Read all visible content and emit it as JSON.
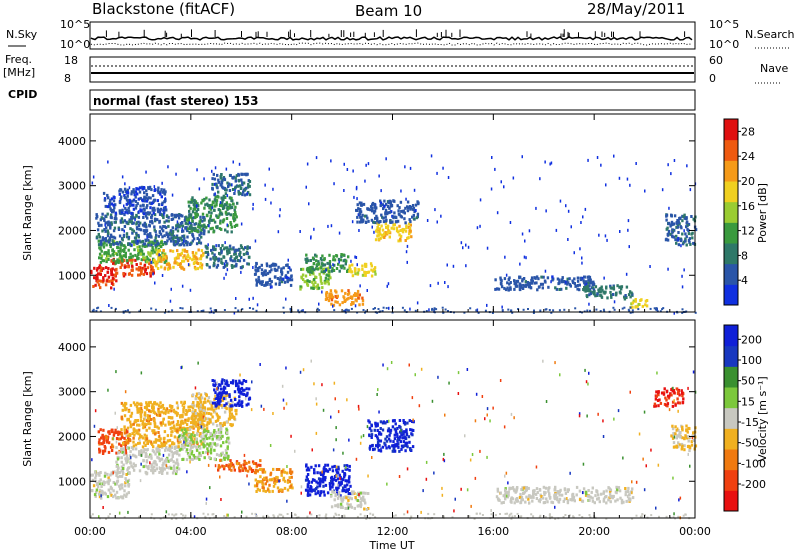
{
  "header": {
    "station": "Blackstone (fitACF)",
    "beam": "Beam 10",
    "date": "28/May/2011"
  },
  "top_panels": {
    "nsky_label": "N.Sky",
    "nsky_ticks": [
      "10^5",
      "10^0"
    ],
    "nsearch_label": "N.Search",
    "nsearch_ticks": [
      "10^5",
      "10^0"
    ],
    "freq_label_line1": "Freq.",
    "freq_label_line2": "[MHz]",
    "freq_ticks": [
      "18",
      "8"
    ],
    "nave_label": "Nave",
    "nave_ticks": [
      "60",
      "0"
    ],
    "cpid_label": "CPID",
    "cpid_text": "normal (fast stereo) 153"
  },
  "colors": {
    "power_scale": [
      "#1030e0",
      "#2a55a8",
      "#2e7868",
      "#3a9a3e",
      "#9acc32",
      "#f0d020",
      "#f59a18",
      "#ef5a10",
      "#e01010"
    ],
    "velocity_scale": [
      "#e81010",
      "#f04010",
      "#f07a10",
      "#f0b020",
      "#c8c8c0",
      "#7cc83c",
      "#3a9030",
      "#1838c0",
      "#1020d8"
    ]
  },
  "chart_data": [
    {
      "type": "heatmap",
      "title": "",
      "xlabel": "Time UT",
      "ylabel": "Slant Range [km]",
      "x_ticks": [
        "00:00",
        "04:00",
        "08:00",
        "12:00",
        "16:00",
        "20:00",
        "00:00"
      ],
      "x_range_hours": [
        0,
        24
      ],
      "y_ticks": [
        "1000",
        "2000",
        "3000",
        "4000"
      ],
      "ylim": [
        180,
        4600
      ],
      "colorbar": {
        "label": "Power [dB]",
        "ticks": [
          "4",
          "8",
          "12",
          "16",
          "20",
          "24",
          "28"
        ],
        "range": [
          0,
          30
        ]
      },
      "regions": [
        {
          "t": [
            0.0,
            1.0
          ],
          "r": [
            750,
            1250
          ],
          "v": 27
        },
        {
          "t": [
            0.8,
            2.5
          ],
          "r": [
            1000,
            1400
          ],
          "v": 26
        },
        {
          "t": [
            0.3,
            3.0
          ],
          "r": [
            1300,
            1800
          ],
          "v": 12
        },
        {
          "t": [
            2.5,
            4.5
          ],
          "r": [
            1150,
            1600
          ],
          "v": 20
        },
        {
          "t": [
            0.2,
            4.5
          ],
          "r": [
            1700,
            2400
          ],
          "v": 6
        },
        {
          "t": [
            0.5,
            3.0
          ],
          "r": [
            2400,
            3000
          ],
          "v": 4
        },
        {
          "t": [
            3.8,
            5.8
          ],
          "r": [
            2000,
            2800
          ],
          "v": 10
        },
        {
          "t": [
            4.5,
            6.3
          ],
          "r": [
            1200,
            1700
          ],
          "v": 7
        },
        {
          "t": [
            4.8,
            6.3
          ],
          "r": [
            2800,
            3300
          ],
          "v": 6
        },
        {
          "t": [
            6.5,
            8.0
          ],
          "r": [
            800,
            1300
          ],
          "v": 5
        },
        {
          "t": [
            8.3,
            9.5
          ],
          "r": [
            700,
            1200
          ],
          "v": 14
        },
        {
          "t": [
            8.5,
            10.2
          ],
          "r": [
            1100,
            1500
          ],
          "v": 10
        },
        {
          "t": [
            9.3,
            10.8
          ],
          "r": [
            350,
            700
          ],
          "v": 22
        },
        {
          "t": [
            10.2,
            11.3
          ],
          "r": [
            1000,
            1300
          ],
          "v": 18
        },
        {
          "t": [
            11.3,
            12.7
          ],
          "r": [
            1800,
            2200
          ],
          "v": 19
        },
        {
          "t": [
            10.5,
            13.0
          ],
          "r": [
            2200,
            2700
          ],
          "v": 5
        },
        {
          "t": [
            16.0,
            20.0
          ],
          "r": [
            700,
            1000
          ],
          "v": 5
        },
        {
          "t": [
            19.5,
            21.5
          ],
          "r": [
            500,
            800
          ],
          "v": 8
        },
        {
          "t": [
            21.3,
            22.1
          ],
          "r": [
            300,
            500
          ],
          "v": 18
        },
        {
          "t": [
            22.8,
            24.0
          ],
          "r": [
            1700,
            2400
          ],
          "v": 6
        }
      ]
    },
    {
      "type": "heatmap",
      "title": "",
      "xlabel": "Time UT",
      "ylabel": "Slant Range [km]",
      "x_ticks": [
        "00:00",
        "04:00",
        "08:00",
        "12:00",
        "16:00",
        "20:00",
        "00:00"
      ],
      "x_range_hours": [
        0,
        24
      ],
      "y_ticks": [
        "1000",
        "2000",
        "3000",
        "4000"
      ],
      "ylim": [
        180,
        4600
      ],
      "colorbar": {
        "label": "Velocity [m s⁻¹]",
        "ticks": [
          "200",
          "100",
          "50",
          "15",
          "-15",
          "-50",
          "-100",
          "-200"
        ],
        "range": [
          -250,
          250
        ]
      },
      "regions": [
        {
          "t": [
            0.0,
            1.5
          ],
          "r": [
            650,
            1250
          ],
          "v": 0
        },
        {
          "t": [
            0.3,
            1.5
          ],
          "r": [
            1650,
            2200
          ],
          "v": -160
        },
        {
          "t": [
            1.0,
            3.5
          ],
          "r": [
            1200,
            1800
          ],
          "v": 5
        },
        {
          "t": [
            1.2,
            4.5
          ],
          "r": [
            1800,
            2800
          ],
          "v": -60
        },
        {
          "t": [
            3.5,
            5.5
          ],
          "r": [
            1500,
            2200
          ],
          "v": 30
        },
        {
          "t": [
            4.0,
            5.8
          ],
          "r": [
            2200,
            3000
          ],
          "v": -40
        },
        {
          "t": [
            4.8,
            6.3
          ],
          "r": [
            2700,
            3300
          ],
          "v": 230
        },
        {
          "t": [
            5.0,
            6.8
          ],
          "r": [
            1250,
            1500
          ],
          "v": -140
        },
        {
          "t": [
            6.5,
            8.0
          ],
          "r": [
            800,
            1300
          ],
          "v": -80
        },
        {
          "t": [
            8.5,
            10.3
          ],
          "r": [
            700,
            1400
          ],
          "v": 220
        },
        {
          "t": [
            9.5,
            11.0
          ],
          "r": [
            400,
            800
          ],
          "v": 0
        },
        {
          "t": [
            11.0,
            12.8
          ],
          "r": [
            1700,
            2400
          ],
          "v": 210
        },
        {
          "t": [
            16.0,
            21.5
          ],
          "r": [
            550,
            900
          ],
          "v": 0
        },
        {
          "t": [
            22.3,
            23.5
          ],
          "r": [
            2700,
            3100
          ],
          "v": -200
        },
        {
          "t": [
            23.0,
            24.0
          ],
          "r": [
            1700,
            2300
          ],
          "v": -30
        }
      ]
    }
  ]
}
